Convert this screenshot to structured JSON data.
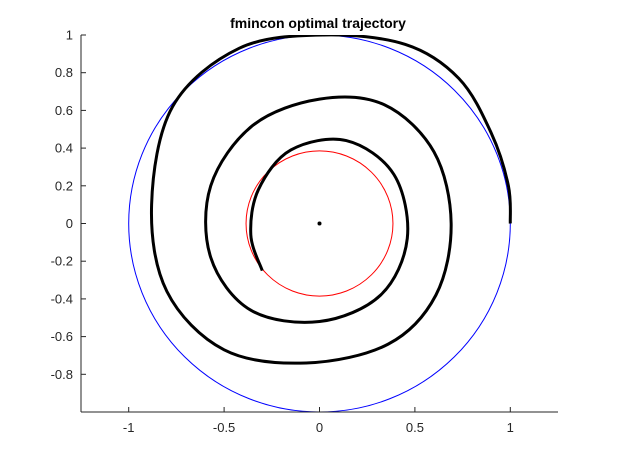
{
  "chart_data": {
    "type": "line",
    "title": "fmincon optimal trajectory",
    "xlabel": "",
    "ylabel": "",
    "xlim": [
      -1.25,
      1.25
    ],
    "ylim": [
      -1,
      1
    ],
    "grid": false,
    "x_ticks": [
      -1,
      -0.5,
      0,
      0.5,
      1
    ],
    "x_tick_labels": [
      "-1",
      "-0.5",
      "0",
      "0.5",
      "1"
    ],
    "y_ticks": [
      1,
      0.8,
      0.6,
      0.4,
      0.2,
      0,
      -0.2,
      -0.4,
      -0.6,
      -0.8
    ],
    "y_tick_labels": [
      "1",
      "0.8",
      "0.6",
      "0.4",
      "0.2",
      "0",
      "-0.2",
      "-0.4",
      "-0.6",
      "-0.8"
    ],
    "circles": [
      {
        "radius": 1.0,
        "center": [
          0,
          0
        ],
        "color": "#0000ff"
      },
      {
        "radius": 0.385,
        "center": [
          0,
          0
        ],
        "color": "#ff0000"
      }
    ],
    "center_point": {
      "x": 0,
      "y": 0,
      "color": "#000000"
    },
    "trajectory": {
      "color": "#000000",
      "points": [
        [
          1.0,
          0.0
        ],
        [
          0.99,
          0.2
        ],
        [
          0.9,
          0.48
        ],
        [
          0.73,
          0.77
        ],
        [
          0.45,
          0.95
        ],
        [
          0.02,
          1.0
        ],
        [
          -0.42,
          0.93
        ],
        [
          -0.77,
          0.62
        ],
        [
          -0.88,
          0.1
        ],
        [
          -0.8,
          -0.36
        ],
        [
          -0.5,
          -0.67
        ],
        [
          -0.07,
          -0.74
        ],
        [
          0.36,
          -0.64
        ],
        [
          0.61,
          -0.38
        ],
        [
          0.69,
          0.0
        ],
        [
          0.6,
          0.38
        ],
        [
          0.34,
          0.63
        ],
        [
          0.0,
          0.66
        ],
        [
          -0.35,
          0.52
        ],
        [
          -0.57,
          0.2
        ],
        [
          -0.57,
          -0.18
        ],
        [
          -0.36,
          -0.46
        ],
        [
          0.0,
          -0.52
        ],
        [
          0.32,
          -0.38
        ],
        [
          0.46,
          -0.08
        ],
        [
          0.39,
          0.26
        ],
        [
          0.14,
          0.44
        ],
        [
          -0.15,
          0.39
        ],
        [
          -0.32,
          0.18
        ],
        [
          -0.36,
          -0.06
        ],
        [
          -0.3,
          -0.25
        ]
      ]
    }
  }
}
